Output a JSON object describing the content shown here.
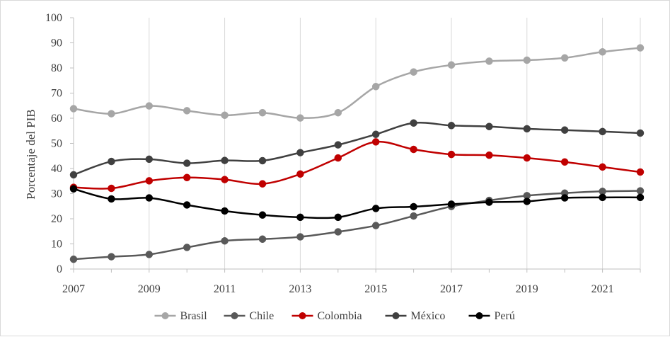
{
  "chart_data": {
    "type": "line",
    "ylabel": "Porcentaje del PIB",
    "xlabel": "",
    "ylim": [
      0,
      100
    ],
    "yticks": [
      0,
      10,
      20,
      30,
      40,
      50,
      60,
      70,
      80,
      90,
      100
    ],
    "xlim": [
      2007,
      2022
    ],
    "xticks": [
      2007,
      2009,
      2011,
      2013,
      2015,
      2017,
      2019,
      2021
    ],
    "grid": "vertical",
    "legend": "bottom",
    "x": [
      2007,
      2008,
      2009,
      2010,
      2011,
      2012,
      2013,
      2014,
      2015,
      2016,
      2017,
      2018,
      2019,
      2020,
      2021,
      2022
    ],
    "series": [
      {
        "name": "Brasil",
        "color": "#a6a6a6",
        "values": [
          63.8,
          61.8,
          64.9,
          63.0,
          61.2,
          62.2,
          60.1,
          62.2,
          72.6,
          78.4,
          81.2,
          82.7,
          83.1,
          84.0,
          86.4,
          88.0
        ]
      },
      {
        "name": "Chile",
        "color": "#595959",
        "values": [
          3.9,
          4.9,
          5.8,
          8.6,
          11.2,
          11.9,
          12.8,
          14.8,
          17.3,
          21.1,
          24.9,
          27.3,
          29.2,
          30.2,
          30.9,
          31.1
        ]
      },
      {
        "name": "Colombia",
        "color": "#c00000",
        "values": [
          32.5,
          32.1,
          35.1,
          36.4,
          35.6,
          33.9,
          37.8,
          44.2,
          50.6,
          47.6,
          45.6,
          45.3,
          44.2,
          42.6,
          40.6,
          38.6
        ]
      },
      {
        "name": "México",
        "color": "#404040",
        "values": [
          37.5,
          42.8,
          43.7,
          42.1,
          43.2,
          43.1,
          46.3,
          49.4,
          53.6,
          58.1,
          57.1,
          56.7,
          55.8,
          55.3,
          54.7,
          54.1
        ]
      },
      {
        "name": "Perú",
        "color": "#000000",
        "values": [
          31.9,
          27.9,
          28.3,
          25.5,
          23.1,
          21.5,
          20.6,
          20.6,
          24.1,
          24.8,
          25.8,
          26.6,
          26.9,
          28.3,
          28.5,
          28.5
        ]
      }
    ]
  }
}
